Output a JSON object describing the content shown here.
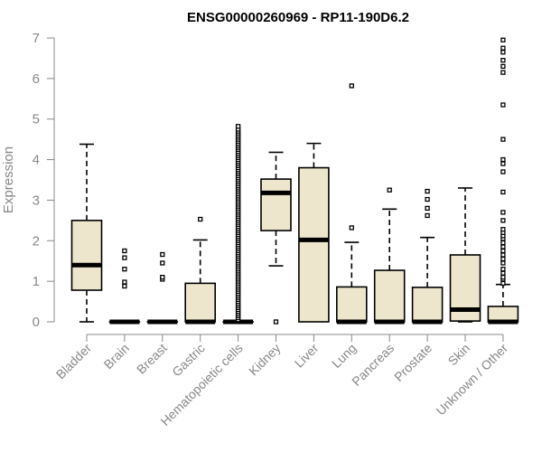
{
  "chart_data": {
    "type": "box",
    "title": "ENSG00000260969 - RP11-190D6.2",
    "ylabel": "Expression",
    "xlabel": "",
    "ylim": [
      0,
      7
    ],
    "yticks": [
      0,
      1,
      2,
      3,
      4,
      5,
      6,
      7
    ],
    "categories": [
      "Bladder",
      "Brain",
      "Breast",
      "Gastric",
      "Hematopoietic cells",
      "Kidney",
      "Liver",
      "Lung",
      "Pancreas",
      "Prostate",
      "Skin",
      "Unknown / Other"
    ],
    "box_fill": "#ede6cc",
    "series": [
      {
        "category": "Bladder",
        "min": 0,
        "q1": 0.78,
        "median": 1.4,
        "q3": 2.5,
        "max": 4.38,
        "outliers": []
      },
      {
        "category": "Brain",
        "min": 0,
        "q1": 0,
        "median": 0,
        "q3": 0,
        "max": 0,
        "outliers": [
          0.88,
          0.98,
          1.3,
          1.58,
          1.75
        ]
      },
      {
        "category": "Breast",
        "min": 0,
        "q1": 0,
        "median": 0,
        "q3": 0,
        "max": 0,
        "outliers": [
          1.05,
          1.1,
          1.45,
          1.66
        ]
      },
      {
        "category": "Gastric",
        "min": 0,
        "q1": 0,
        "median": 0,
        "q3": 0.95,
        "max": 2.02,
        "outliers": [
          2.53
        ]
      },
      {
        "category": "Hematopoietic cells",
        "min": 0,
        "q1": 0,
        "median": 0,
        "q3": 0,
        "max": 0,
        "outliers": [
          0.05,
          0.1,
          0.15,
          0.2,
          0.25,
          0.3,
          0.35,
          0.4,
          0.45,
          0.5,
          0.55,
          0.6,
          0.65,
          0.7,
          0.75,
          0.8,
          0.85,
          0.9,
          0.95,
          1.0,
          1.05,
          1.1,
          1.15,
          1.2,
          1.25,
          1.3,
          1.35,
          1.4,
          1.45,
          1.5,
          1.55,
          1.6,
          1.65,
          1.7,
          1.75,
          1.8,
          1.85,
          1.9,
          1.95,
          2.0,
          2.05,
          2.1,
          2.15,
          2.2,
          2.25,
          2.3,
          2.35,
          2.4,
          2.45,
          2.5,
          2.55,
          2.6,
          2.65,
          2.7,
          2.75,
          2.8,
          2.85,
          2.9,
          2.95,
          3.0,
          3.05,
          3.1,
          3.15,
          3.2,
          3.25,
          3.3,
          3.35,
          3.4,
          3.45,
          3.5,
          3.55,
          3.6,
          3.65,
          3.7,
          3.75,
          3.8,
          3.85,
          3.9,
          3.95,
          4.0,
          4.05,
          4.1,
          4.15,
          4.2,
          4.25,
          4.3,
          4.35,
          4.4,
          4.45,
          4.5,
          4.55,
          4.6,
          4.65,
          4.7,
          4.75,
          4.82
        ]
      },
      {
        "category": "Kidney",
        "min": 1.38,
        "q1": 2.25,
        "median": 3.18,
        "q3": 3.52,
        "max": 4.18,
        "outliers": [
          0
        ]
      },
      {
        "category": "Liver",
        "min": 0,
        "q1": 0,
        "median": 2.02,
        "q3": 3.8,
        "max": 4.4,
        "outliers": []
      },
      {
        "category": "Lung",
        "min": 0,
        "q1": 0,
        "median": 0,
        "q3": 0.86,
        "max": 1.96,
        "outliers": [
          2.32,
          5.82
        ]
      },
      {
        "category": "Pancreas",
        "min": 0,
        "q1": 0,
        "median": 0,
        "q3": 1.27,
        "max": 2.78,
        "outliers": [
          3.25
        ]
      },
      {
        "category": "Prostate",
        "min": 0,
        "q1": 0,
        "median": 0,
        "q3": 0.85,
        "max": 2.08,
        "outliers": [
          2.62,
          2.8,
          3.02,
          3.22
        ]
      },
      {
        "category": "Skin",
        "min": 0,
        "q1": 0.02,
        "median": 0.3,
        "q3": 1.65,
        "max": 3.3,
        "outliers": []
      },
      {
        "category": "Unknown / Other",
        "min": 0,
        "q1": 0,
        "median": 0,
        "q3": 0.38,
        "max": 0.92,
        "outliers": [
          0.95,
          1.05,
          1.1,
          1.2,
          1.3,
          1.45,
          1.55,
          1.65,
          1.75,
          1.85,
          1.95,
          2.05,
          2.12,
          2.2,
          2.28,
          2.5,
          2.7,
          3.2,
          3.7,
          3.9,
          4.0,
          4.5,
          5.35,
          6.15,
          6.3,
          6.45,
          6.65,
          6.75,
          6.95
        ]
      }
    ]
  }
}
